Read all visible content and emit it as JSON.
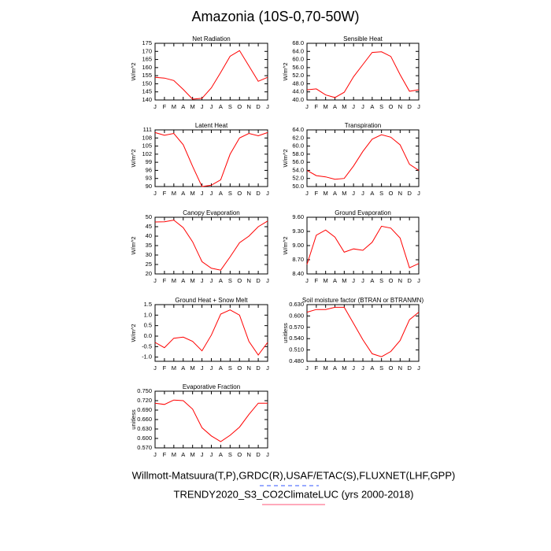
{
  "title": "Amazonia (10S-0,70-50W)",
  "footer": [
    "Willmott-Matsuura(T,P),GRDC(R),USAF/ETAC(S),FLUXNET(LHF,GPP)",
    "TRENDY2020_S3_CO2ClimateLUC (yrs 2000-2018)"
  ],
  "chart_data": [
    {
      "type": "line",
      "title": "Net Radiation",
      "ylabel": "W/m^2",
      "color": "#ff0000",
      "categories": [
        "J",
        "F",
        "M",
        "A",
        "M",
        "J",
        "J",
        "A",
        "S",
        "O",
        "N",
        "D",
        "J"
      ],
      "values": [
        154,
        153.5,
        152,
        146.5,
        140.5,
        141,
        147.5,
        157,
        167,
        170.5,
        161,
        151.5,
        154
      ],
      "ylim": [
        140,
        175
      ],
      "yticks": [
        140,
        145,
        150,
        155,
        160,
        165,
        170,
        175
      ]
    },
    {
      "type": "line",
      "title": "Sensible Heat",
      "ylabel": "W/m^2",
      "color": "#ff0000",
      "categories": [
        "J",
        "F",
        "M",
        "A",
        "M",
        "J",
        "J",
        "A",
        "S",
        "O",
        "N",
        "D",
        "J"
      ],
      "values": [
        45,
        45.5,
        42.5,
        41.2,
        43.8,
        51.5,
        57.5,
        63.5,
        63.8,
        61.5,
        52.5,
        44.3,
        45
      ],
      "ylim": [
        40,
        68
      ],
      "yticks": [
        {
          "value": 40,
          "label": "40.0"
        },
        {
          "value": 44,
          "label": "44.0"
        },
        {
          "value": 48,
          "label": "48.0"
        },
        {
          "value": 52,
          "label": "52.0"
        },
        {
          "value": 56,
          "label": "56.0"
        },
        {
          "value": 60,
          "label": "60.0"
        },
        {
          "value": 64,
          "label": "64.0"
        },
        {
          "value": 68,
          "label": "68.0"
        }
      ]
    },
    {
      "type": "line",
      "title": "Latent Heat",
      "ylabel": "W/m^2",
      "color": "#ff0000",
      "categories": [
        "J",
        "F",
        "M",
        "A",
        "M",
        "J",
        "J",
        "A",
        "S",
        "O",
        "N",
        "D",
        "J"
      ],
      "values": [
        110,
        109,
        109.7,
        105.5,
        97.5,
        90,
        90.5,
        92.5,
        102,
        108,
        109.7,
        108.8,
        110
      ],
      "ylim": [
        90,
        111
      ],
      "yticks": [
        90,
        93,
        96,
        99,
        102,
        105,
        108,
        111
      ]
    },
    {
      "type": "line",
      "title": "Transpiration",
      "ylabel": "W/m^2",
      "color": "#ff0000",
      "categories": [
        "J",
        "F",
        "M",
        "A",
        "M",
        "J",
        "J",
        "A",
        "S",
        "O",
        "N",
        "D",
        "J"
      ],
      "values": [
        54,
        52.7,
        52.4,
        51.8,
        52,
        55.1,
        58.7,
        61.7,
        62.8,
        62.2,
        60.3,
        55.5,
        54
      ],
      "ylim": [
        50,
        64
      ],
      "yticks": [
        {
          "value": 50,
          "label": "50.0"
        },
        {
          "value": 52,
          "label": "52.0"
        },
        {
          "value": 54,
          "label": "54.0"
        },
        {
          "value": 56,
          "label": "56.0"
        },
        {
          "value": 58,
          "label": "58.0"
        },
        {
          "value": 60,
          "label": "60.0"
        },
        {
          "value": 62,
          "label": "62.0"
        },
        {
          "value": 64,
          "label": "64.0"
        }
      ]
    },
    {
      "type": "line",
      "title": "Canopy Evaporation",
      "ylabel": "W/m^2",
      "color": "#ff0000",
      "categories": [
        "J",
        "F",
        "M",
        "A",
        "M",
        "J",
        "J",
        "A",
        "S",
        "O",
        "N",
        "D",
        "J"
      ],
      "values": [
        47.5,
        47.6,
        48.5,
        44.5,
        37,
        26.5,
        23,
        22,
        29,
        36.5,
        40,
        45,
        48
      ],
      "ylim": [
        20,
        50
      ],
      "yticks": [
        20,
        25,
        30,
        35,
        40,
        45,
        50
      ]
    },
    {
      "type": "line",
      "title": "Ground Evaporation",
      "ylabel": "W/m^2",
      "color": "#ff0000",
      "categories": [
        "J",
        "F",
        "M",
        "A",
        "M",
        "J",
        "J",
        "A",
        "S",
        "O",
        "N",
        "D",
        "J"
      ],
      "values": [
        8.6,
        9.22,
        9.33,
        9.18,
        8.86,
        8.93,
        8.9,
        9.07,
        9.41,
        9.37,
        9.16,
        8.53,
        8.62
      ],
      "ylim": [
        8.4,
        9.6
      ],
      "yticks": [
        {
          "value": 8.4,
          "label": "8.40"
        },
        {
          "value": 8.7,
          "label": "8.70"
        },
        {
          "value": 9,
          "label": "9.00"
        },
        {
          "value": 9.3,
          "label": "9.30"
        },
        {
          "value": 9.6,
          "label": "9.60"
        }
      ]
    },
    {
      "type": "line",
      "title": "Ground Heat + Snow Melt",
      "ylabel": "W/m^2",
      "color": "#ff0000",
      "categories": [
        "J",
        "F",
        "M",
        "A",
        "M",
        "J",
        "J",
        "A",
        "S",
        "O",
        "N",
        "D",
        "J"
      ],
      "values": [
        -0.3,
        -0.55,
        -0.1,
        -0.05,
        -0.25,
        -0.7,
        0.05,
        1.05,
        1.25,
        1.0,
        -0.25,
        -0.9,
        -0.3
      ],
      "ylim": [
        -1.2,
        1.5
      ],
      "yticks": [
        {
          "value": -1,
          "label": "-1.0"
        },
        -0.5,
        {
          "value": 0,
          "label": "0.0"
        },
        0.5,
        {
          "value": 1,
          "label": "1.0"
        },
        1.5
      ]
    },
    {
      "type": "line",
      "title": "Soil moisture factor (BTRAN or BTRANMN)",
      "ylabel": "unitless",
      "color": "#ff0000",
      "categories": [
        "J",
        "F",
        "M",
        "A",
        "M",
        "J",
        "J",
        "A",
        "S",
        "O",
        "N",
        "D",
        "J"
      ],
      "values": [
        0.61,
        0.617,
        0.617,
        0.623,
        0.623,
        0.58,
        0.537,
        0.5,
        0.492,
        0.506,
        0.535,
        0.59,
        0.61
      ],
      "ylim": [
        0.48,
        0.63
      ],
      "yticks": [
        {
          "value": 0.48,
          "label": "0.480"
        },
        {
          "value": 0.51,
          "label": "0.510"
        },
        {
          "value": 0.54,
          "label": "0.540"
        },
        {
          "value": 0.57,
          "label": "0.570"
        },
        {
          "value": 0.6,
          "label": "0.600"
        },
        {
          "value": 0.63,
          "label": "0.630"
        }
      ]
    },
    {
      "type": "line",
      "title": "Evaporative Fraction",
      "ylabel": "unitless",
      "color": "#ff0000",
      "categories": [
        "J",
        "F",
        "M",
        "A",
        "M",
        "J",
        "J",
        "A",
        "S",
        "O",
        "N",
        "D",
        "J"
      ],
      "values": [
        0.712,
        0.708,
        0.722,
        0.72,
        0.693,
        0.634,
        0.608,
        0.59,
        0.61,
        0.636,
        0.676,
        0.712,
        0.712
      ],
      "ylim": [
        0.57,
        0.75
      ],
      "yticks": [
        {
          "value": 0.57,
          "label": "0.570"
        },
        {
          "value": 0.6,
          "label": "0.600"
        },
        {
          "value": 0.63,
          "label": "0.630"
        },
        {
          "value": 0.66,
          "label": "0.660"
        },
        {
          "value": 0.69,
          "label": "0.690"
        },
        {
          "value": 0.72,
          "label": "0.720"
        },
        {
          "value": 0.75,
          "label": "0.750"
        }
      ]
    }
  ]
}
